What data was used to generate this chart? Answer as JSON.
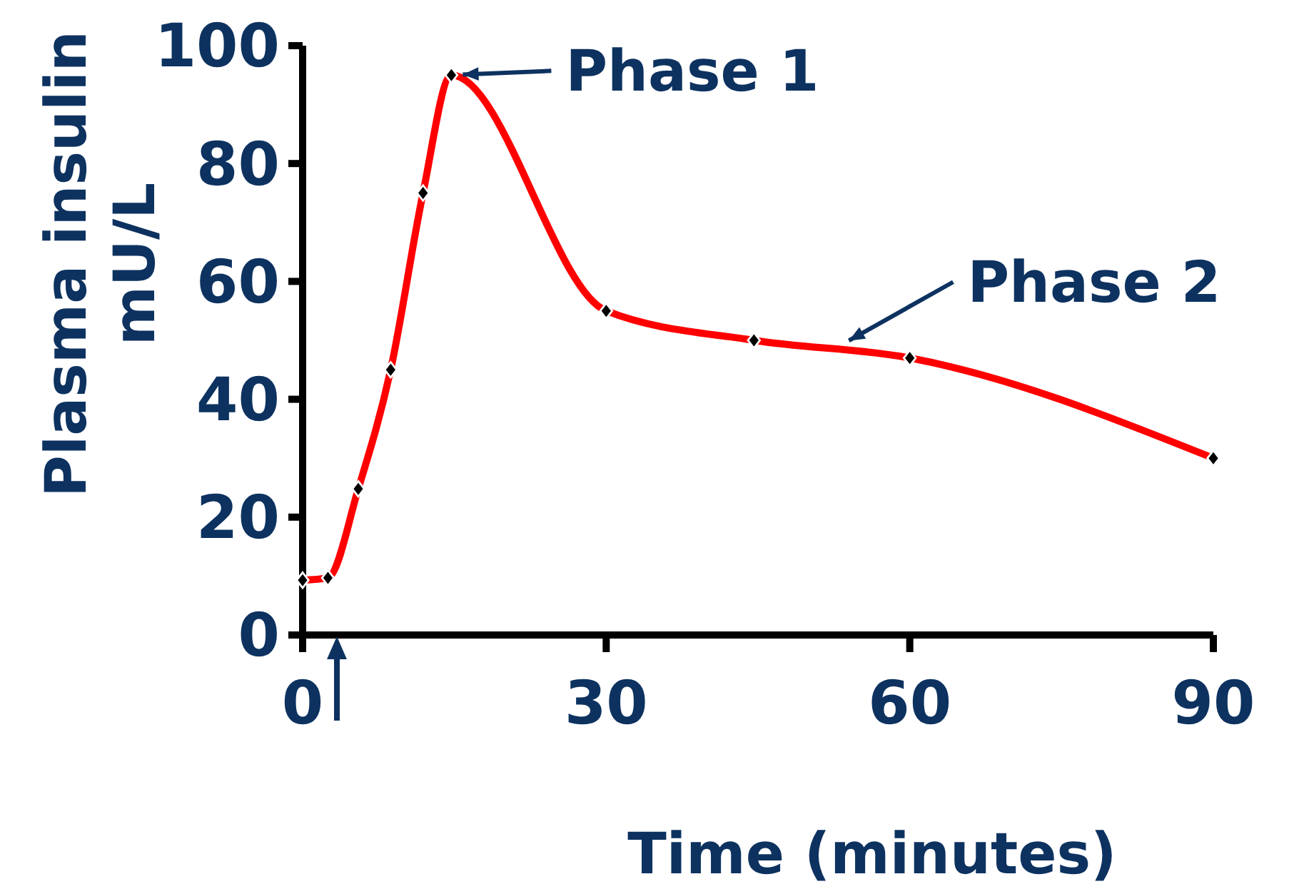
{
  "chart_data": {
    "type": "line",
    "xlabel": "Time (minutes)",
    "ylabel": "Plasma insulin\nmU/L",
    "x": [
      0,
      2.5,
      5.5,
      8.7,
      11.9,
      14.7,
      30,
      44.6,
      60,
      90
    ],
    "series": [
      {
        "color": "#ff0000",
        "values": [
          9.3,
          9.7,
          24.8,
          45,
          75,
          95,
          55,
          50,
          47,
          30
        ]
      }
    ],
    "xlim": [
      0,
      90
    ],
    "xticks": [
      0,
      30,
      60,
      90
    ],
    "ylim": [
      0,
      100
    ],
    "yticks": [
      0,
      20,
      40,
      60,
      80,
      100
    ],
    "marker": "diamond",
    "line_style": "solid",
    "grid": false,
    "annotations": [
      {
        "text": "Phase 1",
        "x": 14.7,
        "y": 95
      },
      {
        "text": "Phase 2",
        "x": 53,
        "y": 49
      }
    ]
  }
}
